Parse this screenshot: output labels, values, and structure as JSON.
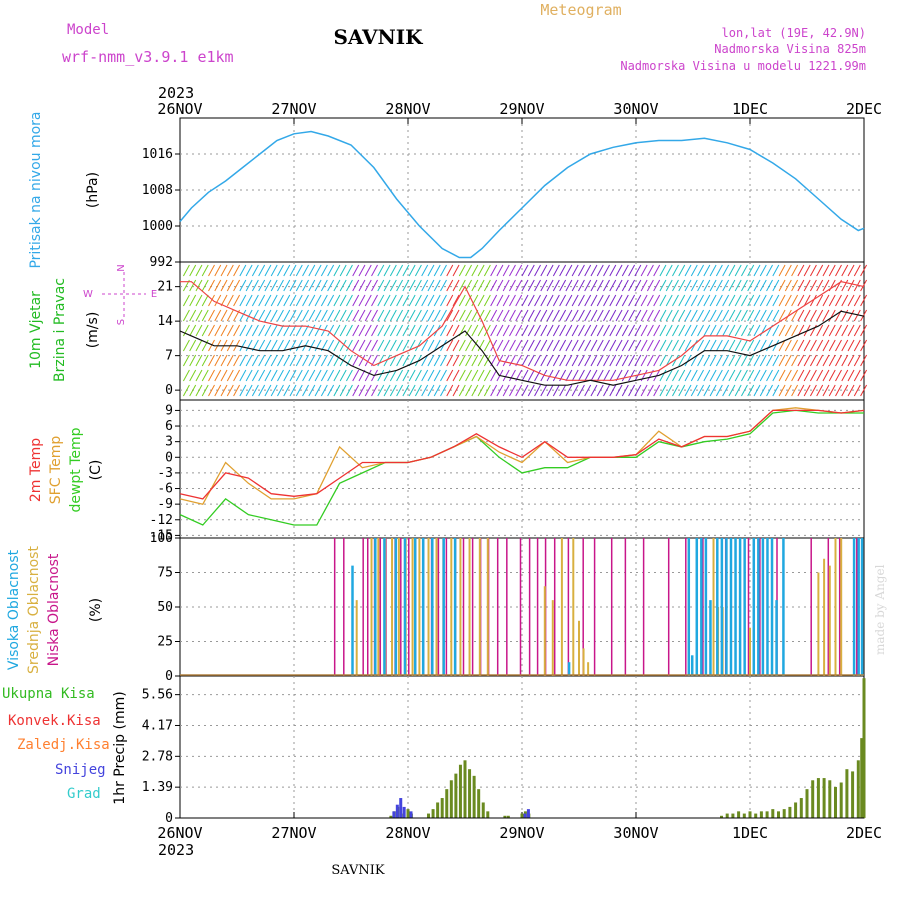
{
  "header": {
    "model_label": "Model",
    "model_name": "wrf-nmm_v3.9.1 e1km",
    "station": "SAVNIK",
    "product": "Meteogram",
    "coords": "lon,lat (19E, 42.9N)",
    "elevation": "Nadmorska Visina 825m",
    "model_elevation": "Nadmorska Visina u modelu 1221.99m",
    "year_top": "2023",
    "year_bottom": "2023",
    "footer_station": "SAVNIK",
    "watermark": "made by Angel"
  },
  "colors": {
    "pressure": "#33a8e8",
    "temp2m": "#ee3333",
    "sfc": "#e0a030",
    "dewpt": "#33cc22",
    "cloud_high": "#20a8e0",
    "cloud_mid": "#d8b040",
    "cloud_low": "#c8168a",
    "precip_total": "#33bb22",
    "precip_conv": "#ee3333",
    "precip_froz": "#ff8030",
    "precip_snow": "#4444dd",
    "precip_graup": "#33cccc",
    "wind_labels": "#cc44cc"
  },
  "chart_data": [
    {
      "type": "line",
      "panel": "pressure",
      "ylabel": [
        "Pritisak na nivou mora",
        "(hPa)"
      ],
      "x_ticks": [
        "26NOV",
        "27NOV",
        "28NOV",
        "29NOV",
        "30NOV",
        "1DEC",
        "2DEC"
      ],
      "y_ticks": [
        992,
        1000,
        1008,
        1016
      ],
      "ylim": [
        992,
        1024
      ],
      "xlim_days": [
        0,
        6
      ],
      "series": [
        {
          "x": [
            0,
            0.1,
            0.25,
            0.4,
            0.55,
            0.7,
            0.85,
            1.0,
            1.15,
            1.3,
            1.5,
            1.7,
            1.9,
            2.1,
            2.3,
            2.45,
            2.55,
            2.65,
            2.8,
            3.0,
            3.2,
            3.4,
            3.6,
            3.8,
            4.0,
            4.2,
            4.4,
            4.6,
            4.8,
            5.0,
            5.2,
            5.4,
            5.6,
            5.8,
            5.95,
            6.0
          ],
          "values": [
            1001,
            1004,
            1007.5,
            1010,
            1013,
            1016,
            1019,
            1020.5,
            1021,
            1020,
            1018,
            1013,
            1006,
            1000,
            995,
            993,
            993,
            995,
            999,
            1004,
            1009,
            1013,
            1016,
            1017.5,
            1018.5,
            1019,
            1019,
            1019.5,
            1018.5,
            1017,
            1014,
            1010.5,
            1006,
            1001.5,
            999,
            999.5
          ]
        }
      ]
    },
    {
      "type": "line",
      "panel": "wind",
      "ylabel": [
        "10m Vjetar",
        "Brzina i Pravac",
        "(m/s)"
      ],
      "y_ticks": [
        0,
        7,
        14,
        21
      ],
      "ylim": [
        -2,
        26
      ],
      "compass": [
        "N",
        "W",
        "E",
        "S"
      ],
      "series": [
        {
          "name": "mean",
          "x": [
            0,
            0.1,
            0.3,
            0.5,
            0.7,
            0.9,
            1.1,
            1.3,
            1.5,
            1.7,
            1.9,
            2.1,
            2.3,
            2.5,
            2.65,
            2.8,
            3.0,
            3.2,
            3.4,
            3.6,
            3.8,
            4.0,
            4.2,
            4.4,
            4.6,
            4.8,
            5.0,
            5.2,
            5.4,
            5.6,
            5.8,
            6.0
          ],
          "values": [
            12,
            11,
            9,
            9,
            8,
            8,
            9,
            8,
            5,
            3,
            4,
            6,
            9,
            12,
            8,
            3,
            2,
            1,
            1,
            2,
            1,
            2,
            3,
            5,
            8,
            8,
            7,
            9,
            11,
            13,
            16,
            15
          ]
        },
        {
          "name": "gust",
          "x": [
            0,
            0.1,
            0.3,
            0.5,
            0.7,
            0.9,
            1.1,
            1.3,
            1.5,
            1.7,
            1.9,
            2.1,
            2.3,
            2.5,
            2.65,
            2.8,
            3.0,
            3.2,
            3.4,
            3.6,
            3.8,
            4.0,
            4.2,
            4.4,
            4.6,
            4.8,
            5.0,
            5.2,
            5.4,
            5.6,
            5.8,
            6.0
          ],
          "values": [
            22,
            22,
            18,
            16,
            14,
            13,
            13,
            12,
            8,
            5,
            7,
            9,
            13,
            21,
            14,
            6,
            5,
            3,
            2,
            2,
            2,
            3,
            4,
            7,
            11,
            11,
            10,
            13,
            16,
            19,
            22,
            21
          ]
        }
      ]
    },
    {
      "type": "line",
      "panel": "temperature",
      "ylabel": [
        "2m Temp",
        "SFC Temp",
        "dewpt Temp",
        "(C)"
      ],
      "y_ticks": [
        -15,
        -12,
        -9,
        -6,
        -3,
        0,
        3,
        6,
        9
      ],
      "ylim": [
        -15.5,
        11
      ],
      "series": [
        {
          "name": "2m Temp",
          "x": [
            0,
            0.2,
            0.4,
            0.6,
            0.8,
            1.0,
            1.2,
            1.4,
            1.6,
            1.8,
            2.0,
            2.2,
            2.4,
            2.6,
            2.8,
            3.0,
            3.2,
            3.4,
            3.6,
            3.8,
            4.0,
            4.2,
            4.4,
            4.6,
            4.8,
            5.0,
            5.2,
            5.4,
            5.6,
            5.8,
            6.0
          ],
          "values": [
            -7,
            -8,
            -3,
            -4,
            -7,
            -7.5,
            -7,
            -4,
            -1,
            -1,
            -1,
            0,
            2,
            4.5,
            2,
            0,
            3,
            0,
            0,
            0,
            0.5,
            3.5,
            2,
            4,
            4,
            5,
            9,
            9,
            9,
            8.5,
            9
          ]
        },
        {
          "name": "SFC Temp",
          "x": [
            0,
            0.2,
            0.4,
            0.6,
            0.8,
            1.0,
            1.2,
            1.4,
            1.6,
            1.8,
            2.0,
            2.2,
            2.4,
            2.6,
            2.8,
            3.0,
            3.2,
            3.4,
            3.6,
            3.8,
            4.0,
            4.2,
            4.4,
            4.6,
            4.8,
            5.0,
            5.2,
            5.4,
            5.6,
            5.8,
            6.0
          ],
          "values": [
            -8,
            -9,
            -1,
            -5,
            -8,
            -8,
            -7,
            2,
            -2,
            -1,
            -1,
            0,
            2,
            4,
            1,
            -1,
            3,
            -1,
            0,
            0,
            0.5,
            5,
            2,
            4,
            4,
            5,
            9,
            9.5,
            9,
            8.5,
            9
          ]
        },
        {
          "name": "dewpt Temp",
          "x": [
            0,
            0.2,
            0.4,
            0.6,
            0.8,
            1.0,
            1.2,
            1.4,
            1.6,
            1.8,
            2.0,
            2.2,
            2.4,
            2.6,
            2.8,
            3.0,
            3.2,
            3.4,
            3.6,
            3.8,
            4.0,
            4.2,
            4.4,
            4.6,
            4.8,
            5.0,
            5.2,
            5.4,
            5.6,
            5.8,
            6.0
          ],
          "values": [
            -11,
            -13,
            -8,
            -11,
            -12,
            -13,
            -13,
            -5,
            -3,
            -1,
            -1,
            0,
            2,
            4,
            0,
            -3,
            -2,
            -2,
            0,
            0,
            0,
            3,
            2,
            3,
            3.5,
            4.5,
            8.5,
            9,
            8.5,
            8.5,
            8.5
          ]
        }
      ]
    },
    {
      "type": "bar",
      "panel": "clouds",
      "ylabel": [
        "Visoka Oblacnost",
        "Srednja Oblacnost",
        "Niska Oblacnost",
        "(%)"
      ],
      "y_ticks": [
        0,
        25,
        50,
        75,
        100
      ],
      "ylim": [
        0,
        100
      ],
      "series": [
        {
          "name": "Niska Oblacnost",
          "x": [
            1.37,
            1.45,
            1.62,
            1.66,
            1.72,
            1.77,
            1.82,
            1.9,
            1.95,
            2.02,
            2.08,
            2.15,
            2.22,
            2.28,
            2.35,
            2.43,
            2.5,
            2.58,
            2.65,
            2.72,
            2.8,
            2.88,
            3.0,
            3.08,
            3.15,
            3.22,
            3.3,
            3.42,
            3.55,
            3.65,
            3.8,
            3.92,
            4.08,
            4.3,
            4.45,
            4.6,
            4.8,
            5.0,
            5.1,
            5.25,
            5.55,
            5.7,
            5.8,
            5.95
          ],
          "values": [
            100,
            100,
            100,
            100,
            100,
            100,
            100,
            100,
            100,
            100,
            100,
            100,
            100,
            100,
            100,
            100,
            100,
            100,
            100,
            100,
            100,
            100,
            100,
            100,
            100,
            100,
            100,
            100,
            100,
            100,
            100,
            100,
            100,
            100,
            100,
            100,
            100,
            100,
            100,
            100,
            100,
            100,
            100,
            100
          ]
        },
        {
          "name": "Srednja Oblacnost",
          "x": [
            1.55,
            1.68,
            1.74,
            1.8,
            1.86,
            1.92,
            1.98,
            2.04,
            2.1,
            2.18,
            2.25,
            2.31,
            2.38,
            2.46,
            2.54,
            2.63,
            2.7,
            3.2,
            3.27,
            3.35,
            3.45,
            3.5,
            3.54,
            3.58,
            4.68,
            4.72,
            4.76,
            5.0,
            5.6,
            5.65,
            5.7,
            5.75,
            5.8
          ],
          "values": [
            55,
            100,
            100,
            100,
            100,
            100,
            100,
            100,
            100,
            100,
            100,
            100,
            100,
            100,
            100,
            100,
            100,
            65,
            55,
            100,
            100,
            40,
            20,
            10,
            100,
            50,
            50,
            35,
            75,
            85,
            80,
            100,
            100
          ]
        },
        {
          "name": "Visoka Oblacnost",
          "x": [
            1.5,
            1.7,
            1.78,
            1.88,
            1.96,
            2.05,
            2.12,
            2.2,
            2.3,
            2.4,
            3.4,
            4.45,
            4.48,
            4.52,
            4.56,
            4.6,
            4.64,
            4.7,
            4.74,
            4.78,
            4.82,
            4.86,
            4.9,
            4.94,
            5.02,
            5.06,
            5.1,
            5.14,
            5.18,
            5.22,
            5.28,
            5.9,
            5.94,
            5.97
          ],
          "values": [
            80,
            100,
            100,
            100,
            100,
            100,
            100,
            100,
            100,
            100,
            10,
            100,
            15,
            100,
            100,
            100,
            55,
            100,
            100,
            100,
            100,
            100,
            100,
            100,
            100,
            100,
            100,
            100,
            100,
            55,
            100,
            100,
            100,
            100
          ]
        }
      ]
    },
    {
      "type": "bar",
      "panel": "precipitation",
      "ylabel": [
        "1hr Precip (mm)"
      ],
      "legend": [
        "Ukupna Kisa",
        "Konvek.Kisa",
        "Zaledj.Kisa",
        "Snijeg",
        "Grad"
      ],
      "y_ticks": [
        0,
        1.39,
        2.78,
        4.17,
        5.56
      ],
      "ylim": [
        0,
        6.4
      ],
      "x_ticks": [
        "26NOV",
        "27NOV",
        "28NOV",
        "29NOV",
        "30NOV",
        "1DEC",
        "2DEC"
      ],
      "series": [
        {
          "name": "Ukupna Kisa",
          "x": [
            1.85,
            1.88,
            1.91,
            1.94,
            2.0,
            2.03,
            2.18,
            2.22,
            2.26,
            2.3,
            2.34,
            2.38,
            2.42,
            2.46,
            2.5,
            2.54,
            2.58,
            2.62,
            2.66,
            2.7,
            2.85,
            2.88,
            3.0,
            3.03,
            3.06,
            4.75,
            4.8,
            4.85,
            4.9,
            4.95,
            5.0,
            5.05,
            5.1,
            5.15,
            5.2,
            5.25,
            5.3,
            5.35,
            5.4,
            5.45,
            5.5,
            5.55,
            5.6,
            5.65,
            5.7,
            5.75,
            5.8,
            5.85,
            5.9,
            5.95,
            5.98,
            6.0
          ],
          "values": [
            0.1,
            0.3,
            0.5,
            0.2,
            0.4,
            0.2,
            0.2,
            0.4,
            0.7,
            0.9,
            1.3,
            1.7,
            2.0,
            2.4,
            2.6,
            2.2,
            1.9,
            1.3,
            0.7,
            0.3,
            0.1,
            0.1,
            0.2,
            0.3,
            0.2,
            0.1,
            0.2,
            0.2,
            0.3,
            0.2,
            0.3,
            0.2,
            0.3,
            0.3,
            0.4,
            0.3,
            0.4,
            0.5,
            0.7,
            0.9,
            1.3,
            1.7,
            1.8,
            1.8,
            1.7,
            1.4,
            1.6,
            2.2,
            2.1,
            2.6,
            3.6,
            6.3
          ]
        },
        {
          "name": "Snijeg",
          "x": [
            1.85,
            1.88,
            1.91,
            1.94,
            2.0,
            3.0,
            3.03
          ],
          "values": [
            0.3,
            0.6,
            0.9,
            0.5,
            0.3,
            0.2,
            0.4
          ]
        }
      ]
    }
  ]
}
